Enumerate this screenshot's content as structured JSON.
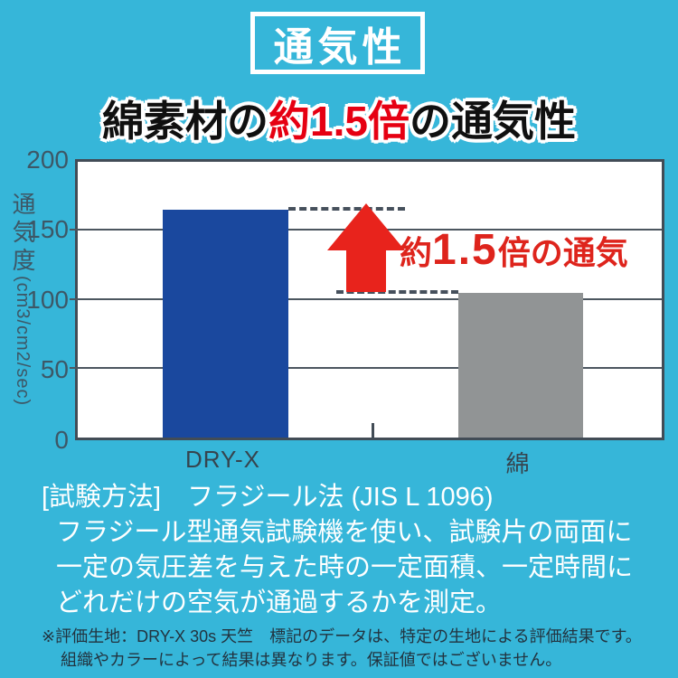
{
  "page": {
    "background_color": "#36b6d9"
  },
  "title_badge": {
    "label": "通気性"
  },
  "headline": {
    "prefix": "綿素材の",
    "highlight": "約1.5倍",
    "suffix": "の通気性",
    "highlight_color": "#e60012",
    "text_color": "#101010"
  },
  "chart_data": {
    "type": "bar",
    "title": "通気性",
    "subtitle": "綿素材の約1.5倍の通気性",
    "categories": [
      "DRY-X",
      "綿"
    ],
    "values": [
      165,
      105
    ],
    "ylabel": "通気度",
    "ylabel_unit": "(cm3/cm2/sec)",
    "ylim": [
      0,
      200
    ],
    "yticks": [
      "200",
      "150",
      "100",
      "50",
      "0"
    ],
    "grid": true,
    "legend": false,
    "bar_colors": [
      "#1a489e",
      "#919495"
    ],
    "plot_background": "#ffffff",
    "annotation": {
      "prefix": "約",
      "value": "1.5",
      "suffix": "倍の通気",
      "color": "#de241c",
      "arrow_color": "#e8231c"
    }
  },
  "method": {
    "lines": [
      "[試験方法]　フラジール法 (JIS L 1096)",
      "フラジール型通気試験機を使い、試験片の両面に",
      "一定の気圧差を与えた時の一定面積、一定時間に",
      "どれだけの空気が通過するかを測定。"
    ]
  },
  "footnote": {
    "lines": [
      "※評価生地：DRY-X 30s 天竺　標記のデータは、特定の生地による評価結果です。",
      "組織やカラーによって結果は異なります。保証値ではございません。"
    ]
  }
}
